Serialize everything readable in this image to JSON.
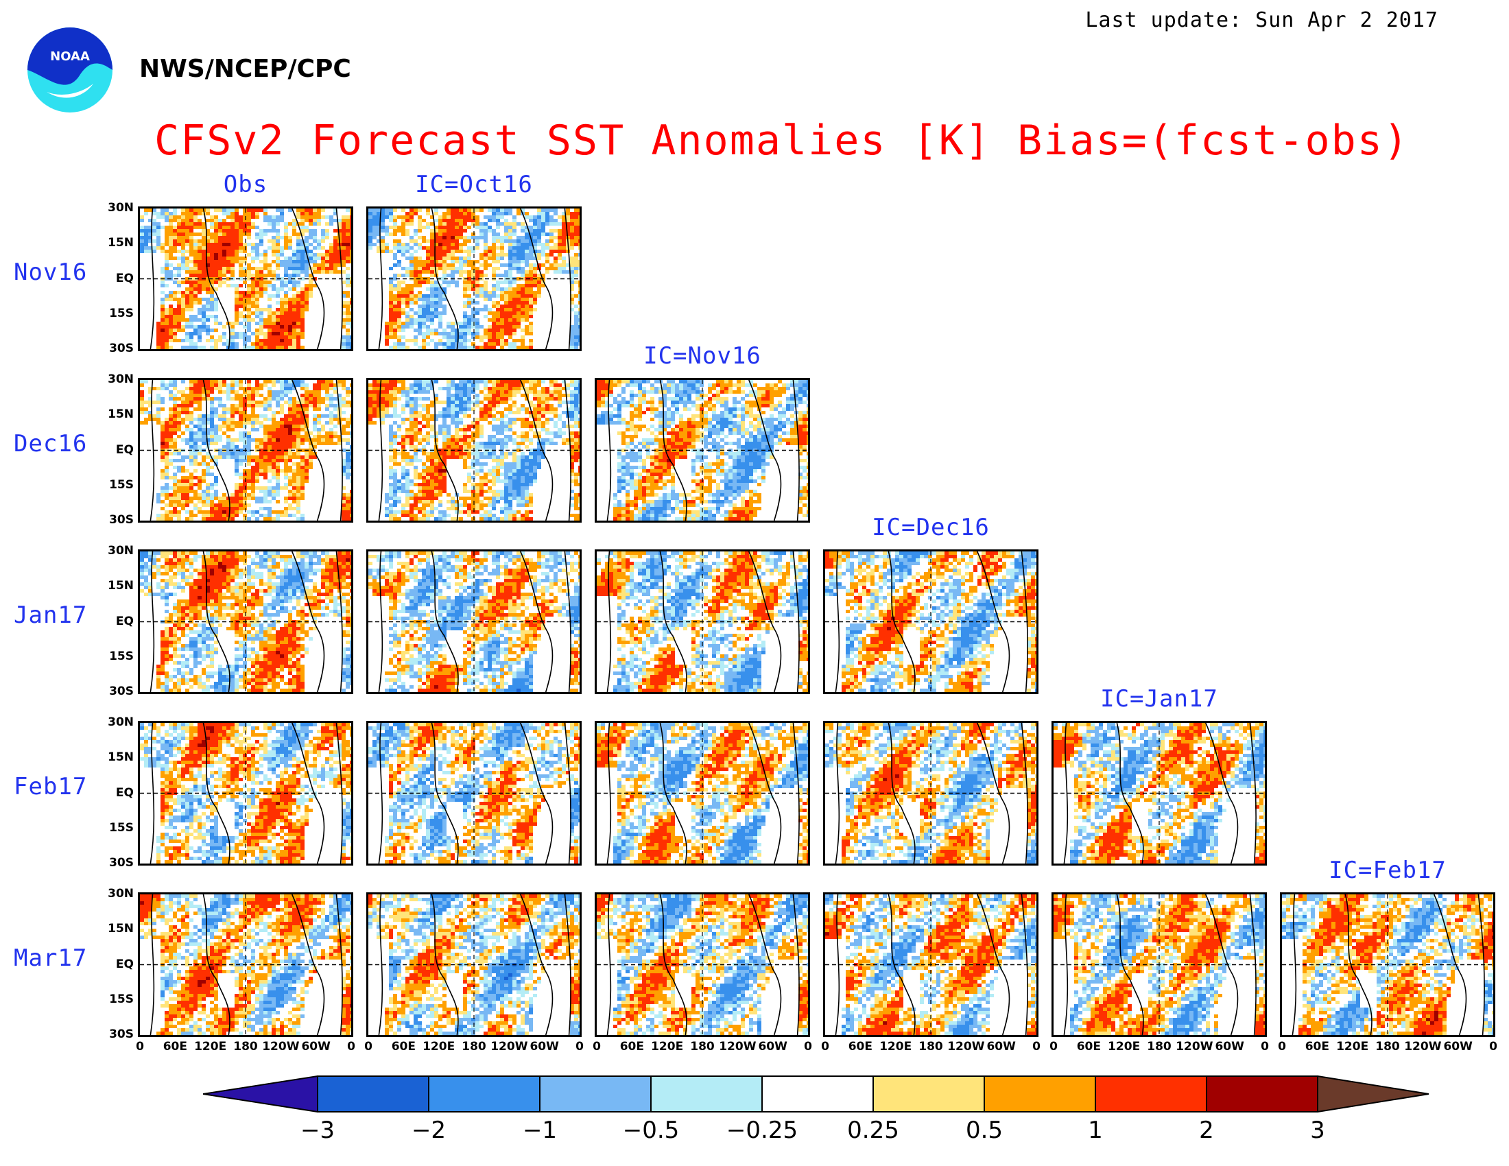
{
  "header": {
    "last_update": "Last update: Sun Apr 2 2017",
    "agency": "NWS/NCEP/CPC",
    "title": "CFSv2 Forecast SST Anomalies [K] Bias=(fcst-obs)",
    "logo_text": "NOAA"
  },
  "columns": [
    "Obs",
    "IC=Oct16",
    "IC=Nov16",
    "IC=Dec16",
    "IC=Jan17",
    "IC=Feb17"
  ],
  "rows": [
    "Nov16",
    "Dec16",
    "Jan17",
    "Feb17",
    "Mar17"
  ],
  "lat_ticks": [
    "30N",
    "15N",
    "EQ",
    "15S",
    "30S"
  ],
  "lon_ticks": [
    "0",
    "60E",
    "120E",
    "180",
    "120W",
    "60W",
    "0"
  ],
  "colorbar": {
    "labels": [
      "-3",
      "-2",
      "-1",
      "-0.5",
      "-0.25",
      "0.25",
      "0.5",
      "1",
      "2",
      "3"
    ],
    "colors": [
      "#2a12a6",
      "#1a62d4",
      "#3890ec",
      "#78b8f4",
      "#b4ecf6",
      "#ffffff",
      "#ffe47a",
      "#ffa000",
      "#ff3000",
      "#a00000",
      "#6a3a2a"
    ]
  },
  "panels": [
    {
      "row": 0,
      "col": 0,
      "seed": 11,
      "bias": 0.35
    },
    {
      "row": 0,
      "col": 1,
      "seed": 23,
      "bias": 0.15
    },
    {
      "row": 1,
      "col": 0,
      "seed": 37,
      "bias": 0.3
    },
    {
      "row": 1,
      "col": 1,
      "seed": 41,
      "bias": 0.1
    },
    {
      "row": 1,
      "col": 2,
      "seed": 53,
      "bias": -0.05
    },
    {
      "row": 2,
      "col": 0,
      "seed": 67,
      "bias": 0.3
    },
    {
      "row": 2,
      "col": 1,
      "seed": 71,
      "bias": 0.0
    },
    {
      "row": 2,
      "col": 2,
      "seed": 83,
      "bias": 0.05
    },
    {
      "row": 2,
      "col": 3,
      "seed": 97,
      "bias": 0.05
    },
    {
      "row": 3,
      "col": 0,
      "seed": 101,
      "bias": 0.25
    },
    {
      "row": 3,
      "col": 1,
      "seed": 113,
      "bias": 0.0
    },
    {
      "row": 3,
      "col": 2,
      "seed": 127,
      "bias": 0.05
    },
    {
      "row": 3,
      "col": 3,
      "seed": 131,
      "bias": 0.15
    },
    {
      "row": 3,
      "col": 4,
      "seed": 149,
      "bias": 0.1
    },
    {
      "row": 4,
      "col": 0,
      "seed": 151,
      "bias": 0.25
    },
    {
      "row": 4,
      "col": 1,
      "seed": 163,
      "bias": 0.0
    },
    {
      "row": 4,
      "col": 2,
      "seed": 173,
      "bias": 0.05
    },
    {
      "row": 4,
      "col": 3,
      "seed": 181,
      "bias": 0.2
    },
    {
      "row": 4,
      "col": 4,
      "seed": 193,
      "bias": 0.15
    },
    {
      "row": 4,
      "col": 5,
      "seed": 199,
      "bias": 0.2
    }
  ]
}
